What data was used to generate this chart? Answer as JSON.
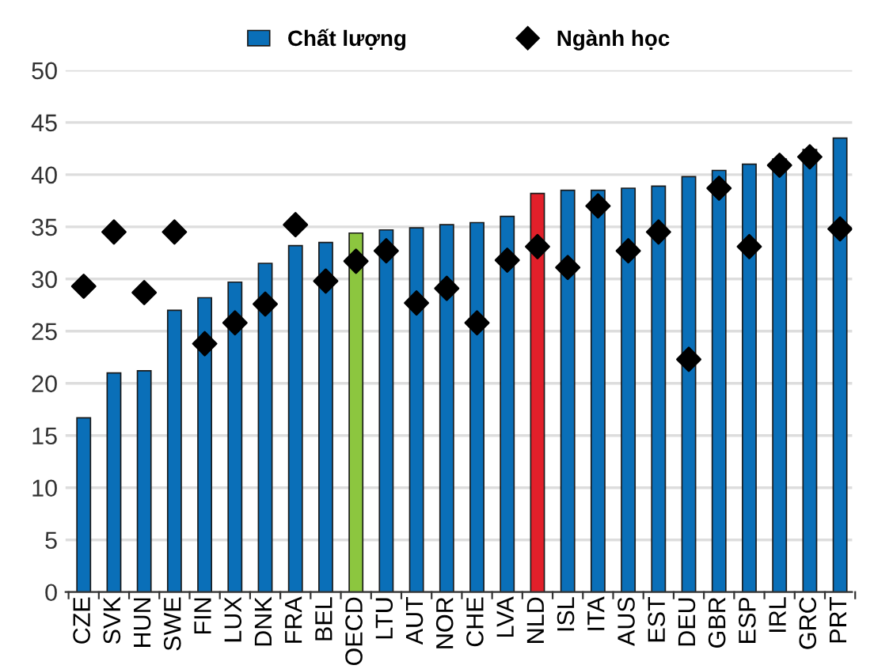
{
  "chart_data": {
    "type": "bar",
    "categories": [
      "CZE",
      "SVK",
      "HUN",
      "SWE",
      "FIN",
      "LUX",
      "DNK",
      "FRA",
      "BEL",
      "OECD",
      "LTU",
      "AUT",
      "NOR",
      "CHE",
      "LVA",
      "NLD",
      "ISL",
      "ITA",
      "AUS",
      "EST",
      "DEU",
      "GBR",
      "ESP",
      "IRL",
      "GRC",
      "PRT"
    ],
    "series": [
      {
        "name": "Chất lượng",
        "color": "#0a6fb8",
        "colors": [
          "#0a6fb8",
          "#0a6fb8",
          "#0a6fb8",
          "#0a6fb8",
          "#0a6fb8",
          "#0a6fb8",
          "#0a6fb8",
          "#0a6fb8",
          "#0a6fb8",
          "#8cc63f",
          "#0a6fb8",
          "#0a6fb8",
          "#0a6fb8",
          "#0a6fb8",
          "#0a6fb8",
          "#e2202a",
          "#0a6fb8",
          "#0a6fb8",
          "#0a6fb8",
          "#0a6fb8",
          "#0a6fb8",
          "#0a6fb8",
          "#0a6fb8",
          "#0a6fb8",
          "#0a6fb8",
          "#0a6fb8"
        ],
        "values": [
          16.7,
          21.0,
          21.2,
          27.0,
          28.2,
          29.7,
          31.5,
          33.2,
          33.5,
          34.4,
          34.7,
          34.9,
          35.2,
          35.4,
          36.0,
          38.2,
          38.5,
          38.5,
          38.7,
          38.9,
          39.8,
          40.4,
          41.0,
          41.5,
          42.4,
          43.5
        ]
      },
      {
        "name": "Ngành học",
        "type": "scatter",
        "color": "#000000",
        "marker": "diamond",
        "values": [
          29.3,
          34.5,
          28.7,
          34.5,
          23.8,
          25.8,
          27.6,
          35.2,
          29.8,
          31.7,
          32.7,
          27.7,
          29.1,
          25.8,
          31.8,
          33.1,
          31.1,
          37.0,
          32.7,
          34.5,
          22.3,
          38.7,
          33.1,
          40.9,
          41.7,
          34.8
        ]
      }
    ],
    "ylim": [
      0,
      50
    ],
    "yticks": [
      0,
      5,
      10,
      15,
      20,
      25,
      30,
      35,
      40,
      45,
      50
    ],
    "grid": "y",
    "legend": "top"
  }
}
